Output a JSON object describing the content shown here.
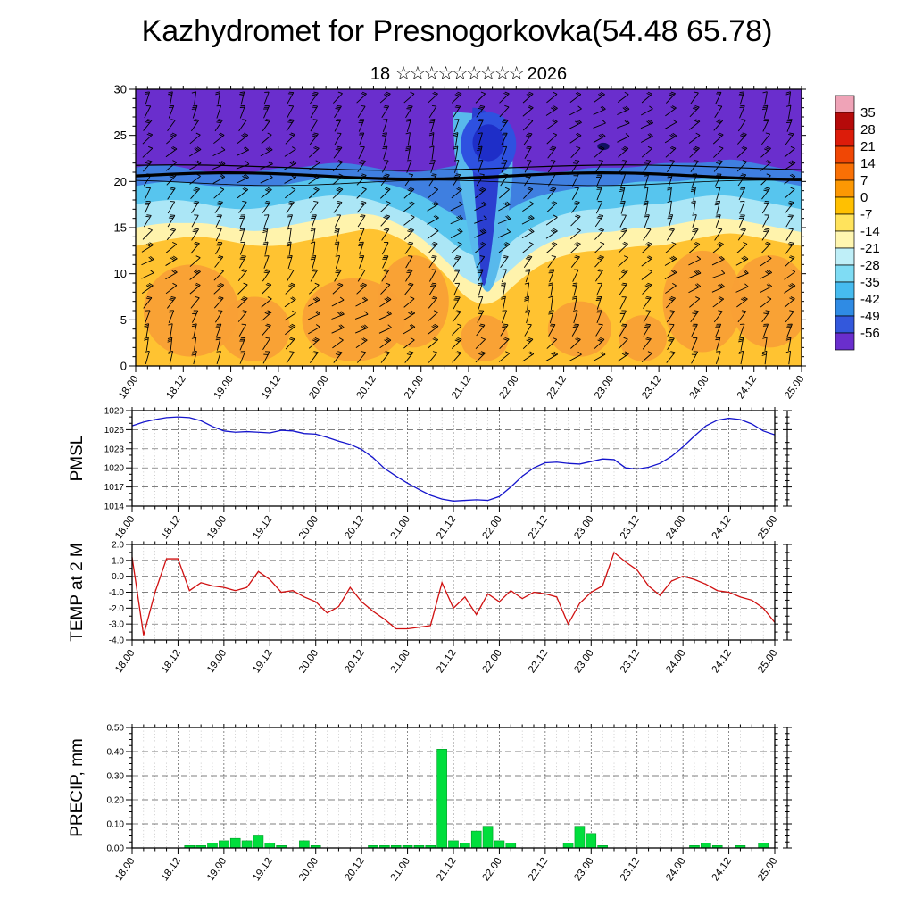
{
  "title": "Kazhydromet for Presnogorkovka(54.48 65.78)",
  "subtitle": {
    "prefix": "18",
    "stars": "☆☆☆☆☆☆☆☆☆",
    "suffix": "2026"
  },
  "time_axis": {
    "tick_labels": [
      "18.00",
      "18.12",
      "19.00",
      "19.12",
      "20.00",
      "20.12",
      "21.00",
      "21.12",
      "22.00",
      "22.12",
      "23.00",
      "23.12",
      "24.00",
      "24.12",
      "25.00"
    ],
    "hours_span": 168,
    "major_step_hours": 12,
    "minor_step_hours": 3
  },
  "chart_data": [
    {
      "type": "heatmap",
      "name": "wind-temperature-time-height-cross-section",
      "title": "18 ☆☆☆☆☆☆☆☆☆ 2026",
      "ylim": [
        0,
        30
      ],
      "yticks": [
        0,
        5,
        10,
        15,
        20,
        25,
        30
      ],
      "ytick_labels": [
        "0",
        "5",
        "10",
        "15",
        "20",
        "25",
        "30"
      ],
      "overlay": "wind-barbs",
      "band_step_hours": 6,
      "bands": [
        {
          "name": "purple-top",
          "color": "#6A2ECD"
        },
        {
          "name": "blue",
          "color": "#3F7FE0",
          "top": [
            21.5,
            22,
            21.5,
            21,
            21,
            21,
            21.5,
            21.5,
            22,
            22,
            21.5,
            21,
            21,
            21.5,
            22,
            22,
            21.5,
            21,
            21,
            21.5,
            21.5,
            21.5,
            22,
            22,
            22,
            22.5,
            22,
            21.5,
            21
          ]
        },
        {
          "name": "cyan",
          "color": "#57C5EE",
          "top": [
            19.5,
            20,
            20,
            19.5,
            19.5,
            19.5,
            19.5,
            20,
            20.5,
            20.5,
            20,
            19.5,
            18.5,
            17,
            15.5,
            15.5,
            17.5,
            18.5,
            19,
            19.5,
            19.5,
            20,
            20,
            20,
            20.5,
            20.5,
            20.5,
            20,
            19.5
          ]
        },
        {
          "name": "light-cyan",
          "color": "#ABE6F6",
          "top": [
            17.5,
            18,
            18,
            17.5,
            17,
            17,
            17.5,
            18,
            18.5,
            18.5,
            18,
            17,
            16,
            14,
            12,
            11.5,
            14,
            15.5,
            16.5,
            17,
            17,
            17.5,
            17.5,
            18,
            18.5,
            18.5,
            18,
            17.5,
            17
          ]
        },
        {
          "name": "pale-yellow",
          "color": "#FFF3AC",
          "top": [
            15,
            15.5,
            15.5,
            15.5,
            15,
            14.5,
            15,
            15.5,
            16,
            16.5,
            16.5,
            15.5,
            14,
            11.5,
            9,
            8.5,
            11,
            13,
            14,
            14.5,
            14.5,
            15,
            15,
            15.5,
            16,
            16,
            15.5,
            15,
            14.5
          ]
        },
        {
          "name": "golden",
          "color": "#FFC331",
          "top": [
            13,
            13.5,
            14,
            14,
            13.5,
            13,
            13,
            13.5,
            14,
            14.5,
            15,
            14,
            12.5,
            10,
            7,
            6.5,
            9,
            11,
            12,
            12.5,
            12.5,
            13,
            13,
            13.5,
            14,
            14.5,
            14,
            13.5,
            13
          ]
        }
      ],
      "warm_blobs": {
        "color": "#F9A035",
        "ellipses": [
          [
            14,
            6,
            12,
            5
          ],
          [
            30,
            4,
            9,
            3.5
          ],
          [
            55,
            5,
            13,
            4.5
          ],
          [
            70,
            7,
            9,
            5
          ],
          [
            88,
            3,
            6,
            2.5
          ],
          [
            112,
            4,
            8,
            3
          ],
          [
            128,
            3,
            6,
            2.5
          ],
          [
            143,
            7,
            10,
            5.5
          ],
          [
            160,
            7,
            10,
            5
          ]
        ]
      },
      "cold_funnel": {
        "halo": {
          "color": "#58B9EC",
          "points": [
            [
              80,
              27.5
            ],
            [
              94,
              27.5
            ],
            [
              95.5,
              22
            ],
            [
              94,
              16
            ],
            [
              91,
              9
            ],
            [
              88,
              7.5
            ],
            [
              85,
              12
            ],
            [
              82.5,
              18
            ],
            [
              80.5,
              23
            ]
          ]
        },
        "core": {
          "color": "#2B3FD0",
          "points": [
            [
              85,
              28
            ],
            [
              90,
              28
            ],
            [
              92,
              23
            ],
            [
              91,
              17
            ],
            [
              89,
              10
            ],
            [
              87.5,
              8
            ],
            [
              86.5,
              13
            ],
            [
              85.5,
              19
            ],
            [
              84.5,
              24
            ]
          ]
        },
        "cloud": [
          {
            "color": "#2E51E0",
            "e": [
              89,
              24,
              7,
              3.5
            ]
          },
          {
            "color": "#1E2EC8",
            "e": [
              89,
              24.2,
              4,
              2
            ]
          }
        ]
      },
      "dark_speck": [
        118,
        23.8,
        1.5,
        0.4
      ],
      "colorbar": {
        "labels": [
          "35",
          "28",
          "21",
          "14",
          "7",
          "0",
          "-7",
          "-14",
          "-21",
          "-28",
          "-35",
          "-42",
          "-49",
          "-56"
        ],
        "colors_top_to_bottom": [
          "#EFA3B7",
          "#B50A0A",
          "#DC1C0A",
          "#F04705",
          "#F97005",
          "#FC9803",
          "#FFC001",
          "#FFE35C",
          "#FFF6B0",
          "#BFEFF8",
          "#7FDCF4",
          "#46BBEF",
          "#2F8BE4",
          "#3358DC",
          "#6A2ECD"
        ]
      }
    },
    {
      "type": "line",
      "name": "pmsl",
      "ylabel": "PMSL",
      "color": "#1414CC",
      "ylim": [
        1014,
        1029
      ],
      "yticks": [
        1014,
        1017,
        1020,
        1023,
        1026,
        1029
      ],
      "ytick_labels": [
        "1014",
        "1017",
        "1020",
        "1023",
        "1026",
        "1029"
      ],
      "x_start_hours": 0,
      "x_step_hours": 3,
      "values": [
        1026.6,
        1027.2,
        1027.6,
        1027.9,
        1028.0,
        1027.9,
        1027.4,
        1026.5,
        1025.8,
        1025.6,
        1025.7,
        1025.6,
        1025.5,
        1025.9,
        1025.8,
        1025.4,
        1025.3,
        1024.8,
        1024.2,
        1023.7,
        1022.9,
        1021.6,
        1019.9,
        1018.7,
        1017.6,
        1016.6,
        1015.7,
        1015.1,
        1014.8,
        1014.9,
        1015.0,
        1014.9,
        1015.5,
        1017.0,
        1018.7,
        1020.0,
        1020.8,
        1020.9,
        1020.7,
        1020.6,
        1021.0,
        1021.4,
        1021.3,
        1020.0,
        1019.8,
        1020.1,
        1020.7,
        1021.8,
        1023.3,
        1025.0,
        1026.6,
        1027.5,
        1027.8,
        1027.6,
        1026.9,
        1025.8,
        1025.2
      ]
    },
    {
      "type": "line",
      "name": "temp-2m",
      "ylabel": "TEMP at 2 M",
      "color": "#D01010",
      "ylim": [
        -4,
        2
      ],
      "yticks": [
        -4,
        -3,
        -2,
        -1,
        0,
        1,
        2
      ],
      "ytick_labels": [
        "-4.0",
        "-3.0",
        "-2.0",
        "-1.0",
        "0.0",
        "1.0",
        "2.0"
      ],
      "x_start_hours": 0,
      "x_step_hours": 3,
      "values": [
        1.2,
        -3.7,
        -1.0,
        1.1,
        1.1,
        -0.9,
        -0.4,
        -0.6,
        -0.7,
        -0.9,
        -0.7,
        0.3,
        -0.2,
        -1.0,
        -0.9,
        -1.3,
        -1.6,
        -2.3,
        -1.9,
        -0.7,
        -1.6,
        -2.2,
        -2.7,
        -3.3,
        -3.3,
        -3.2,
        -3.1,
        -0.4,
        -2.0,
        -1.3,
        -2.4,
        -1.1,
        -1.6,
        -0.9,
        -1.4,
        -1.0,
        -1.1,
        -1.3,
        -3.0,
        -1.7,
        -1.0,
        -0.6,
        1.5,
        0.9,
        0.4,
        -0.6,
        -1.2,
        -0.3,
        0.0,
        -0.2,
        -0.5,
        -0.9,
        -1.0,
        -1.3,
        -1.5,
        -2.0,
        -2.9
      ]
    },
    {
      "type": "bar",
      "name": "precipitation",
      "ylabel": "PRECIP, mm",
      "color": "#00DE3C",
      "ylim": [
        0,
        0.5
      ],
      "yticks": [
        0,
        0.1,
        0.2,
        0.3,
        0.4,
        0.5
      ],
      "ytick_labels": [
        "0.00",
        "0.10",
        "0.20",
        "0.30",
        "0.40",
        "0.50"
      ],
      "x_start_hours": 0,
      "x_step_hours": 3,
      "values": [
        0,
        0,
        0,
        0,
        0,
        0.01,
        0.01,
        0.02,
        0.03,
        0.04,
        0.03,
        0.05,
        0.02,
        0.01,
        0,
        0.03,
        0.01,
        0,
        0,
        0,
        0,
        0.01,
        0.01,
        0.01,
        0.01,
        0.01,
        0.01,
        0.41,
        0.03,
        0.02,
        0.07,
        0.09,
        0.03,
        0.02,
        0,
        0,
        0,
        0,
        0.02,
        0.09,
        0.06,
        0.01,
        0,
        0,
        0,
        0,
        0,
        0,
        0,
        0.01,
        0.02,
        0.01,
        0,
        0.01,
        0,
        0.02,
        0
      ]
    }
  ]
}
